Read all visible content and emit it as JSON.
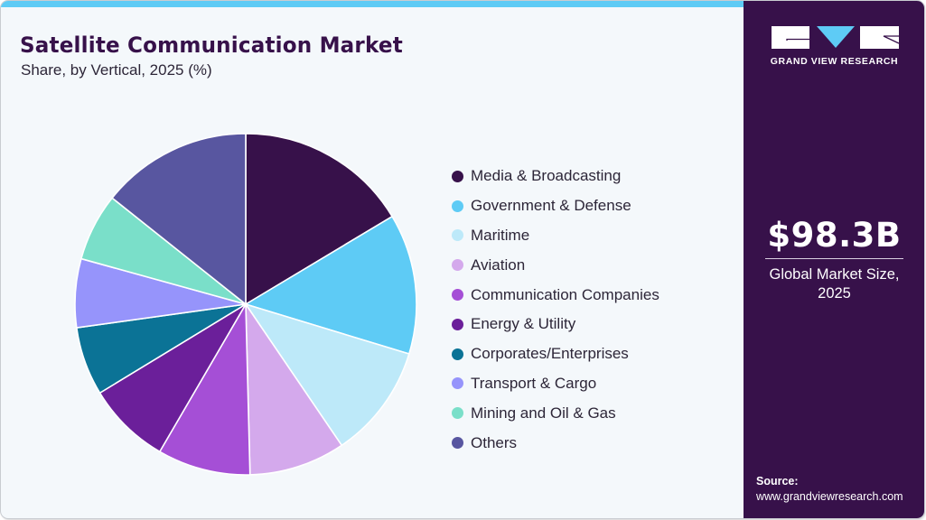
{
  "header": {
    "title": "Satellite Communication Market",
    "subtitle": "Share, by Vertical, 2025 (%)"
  },
  "brand": {
    "logo_text": "GRAND VIEW RESEARCH",
    "colors": {
      "primary": "#37114a",
      "accent": "#5ecbf5",
      "background": "#f4f8fb"
    }
  },
  "summary": {
    "market_value": "$98.3B",
    "market_label_line1": "Global Market Size,",
    "market_label_line2": "2025"
  },
  "source": {
    "label": "Source:",
    "url": "www.grandviewresearch.com"
  },
  "legend": {
    "items": [
      {
        "label": "Media & Broadcasting",
        "color": "#37114a"
      },
      {
        "label": "Government & Defense",
        "color": "#5ecbf5"
      },
      {
        "label": "Maritime",
        "color": "#bde9f9"
      },
      {
        "label": "Aviation",
        "color": "#d4a9ec"
      },
      {
        "label": "Communication Companies",
        "color": "#a54fd6"
      },
      {
        "label": "Energy & Utility",
        "color": "#6b1f9a"
      },
      {
        "label": "Corporates/Enterprises",
        "color": "#0b7396"
      },
      {
        "label": "Transport & Cargo",
        "color": "#9694fb"
      },
      {
        "label": "Mining and Oil & Gas",
        "color": "#7adfc9"
      },
      {
        "label": "Others",
        "color": "#5856a0"
      }
    ]
  },
  "chart_data": {
    "type": "pie",
    "title": "Satellite Communication Market",
    "subtitle": "Share, by Vertical, 2025 (%)",
    "categories": [
      "Media & Broadcasting",
      "Government & Defense",
      "Maritime",
      "Aviation",
      "Communication Companies",
      "Energy & Utility",
      "Corporates/Enterprises",
      "Transport & Cargo",
      "Mining and Oil & Gas",
      "Others"
    ],
    "values": [
      16.4,
      13.3,
      10.8,
      9.1,
      8.8,
      7.9,
      6.5,
      6.5,
      6.4,
      14.3
    ],
    "colors": [
      "#37114a",
      "#5ecbf5",
      "#bde9f9",
      "#d4a9ec",
      "#a54fd6",
      "#6b1f9a",
      "#0b7396",
      "#9694fb",
      "#7adfc9",
      "#5856a0"
    ],
    "start_angle": "12 o'clock, clockwise",
    "legend_position": "right",
    "data_labels": false,
    "annotation": "$98.3B Global Market Size, 2025"
  }
}
